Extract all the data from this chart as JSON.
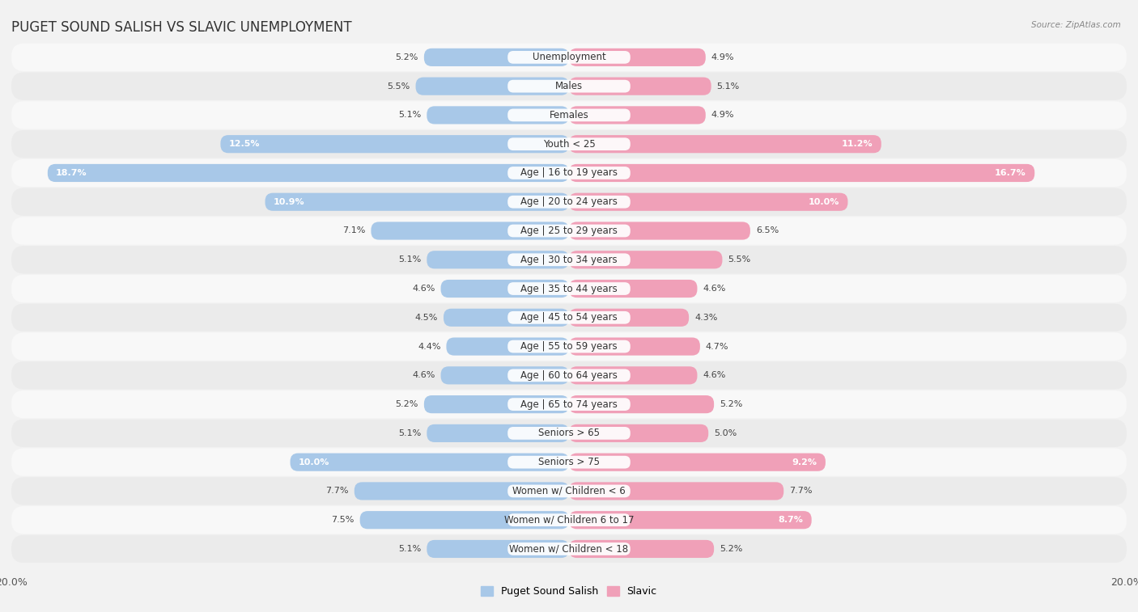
{
  "title": "PUGET SOUND SALISH VS SLAVIC UNEMPLOYMENT",
  "source": "Source: ZipAtlas.com",
  "categories": [
    "Unemployment",
    "Males",
    "Females",
    "Youth < 25",
    "Age | 16 to 19 years",
    "Age | 20 to 24 years",
    "Age | 25 to 29 years",
    "Age | 30 to 34 years",
    "Age | 35 to 44 years",
    "Age | 45 to 54 years",
    "Age | 55 to 59 years",
    "Age | 60 to 64 years",
    "Age | 65 to 74 years",
    "Seniors > 65",
    "Seniors > 75",
    "Women w/ Children < 6",
    "Women w/ Children 6 to 17",
    "Women w/ Children < 18"
  ],
  "left_values": [
    5.2,
    5.5,
    5.1,
    12.5,
    18.7,
    10.9,
    7.1,
    5.1,
    4.6,
    4.5,
    4.4,
    4.6,
    5.2,
    5.1,
    10.0,
    7.7,
    7.5,
    5.1
  ],
  "right_values": [
    4.9,
    5.1,
    4.9,
    11.2,
    16.7,
    10.0,
    6.5,
    5.5,
    4.6,
    4.3,
    4.7,
    4.6,
    5.2,
    5.0,
    9.2,
    7.7,
    8.7,
    5.2
  ],
  "left_color": "#a8c8e8",
  "right_color": "#f0a0b8",
  "left_label": "Puget Sound Salish",
  "right_label": "Slavic",
  "max_val": 20.0,
  "bar_height": 0.62,
  "bg_color": "#f2f2f2",
  "row_light_color": "#f8f8f8",
  "row_dark_color": "#ebebeb",
  "title_fontsize": 12,
  "label_fontsize": 8.5,
  "value_fontsize": 8,
  "inner_value_threshold": 8.0
}
